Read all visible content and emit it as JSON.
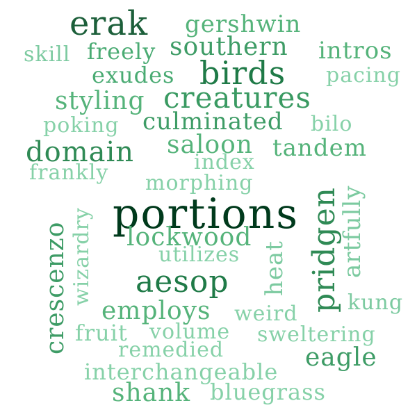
{
  "words": [
    {
      "key": "erak",
      "text": "erak",
      "color": "#1c5f3a"
    },
    {
      "key": "gershwin",
      "text": "gershwin",
      "color": "#55b37a"
    },
    {
      "key": "skill",
      "text": "skill",
      "color": "#7ccaa0"
    },
    {
      "key": "freely",
      "text": "freely",
      "color": "#4aab73"
    },
    {
      "key": "southern",
      "text": "southern",
      "color": "#3e9c66"
    },
    {
      "key": "intros",
      "text": "intros",
      "color": "#55b37a"
    },
    {
      "key": "exudes",
      "text": "exudes",
      "color": "#4aab73"
    },
    {
      "key": "birds",
      "text": "birds",
      "color": "#1f7a47"
    },
    {
      "key": "pacing",
      "text": "pacing",
      "color": "#86d1a8"
    },
    {
      "key": "styling",
      "text": "styling",
      "color": "#55b37a"
    },
    {
      "key": "creatures",
      "text": "creatures",
      "color": "#3a9a62"
    },
    {
      "key": "poking",
      "text": "poking",
      "color": "#86d1a8"
    },
    {
      "key": "culminated",
      "text": "culminated",
      "color": "#3e9c66"
    },
    {
      "key": "bilo",
      "text": "bilo",
      "color": "#86d1a8"
    },
    {
      "key": "domain",
      "text": "domain",
      "color": "#2f8a55"
    },
    {
      "key": "saloon",
      "text": "saloon",
      "color": "#55b37a"
    },
    {
      "key": "tandem",
      "text": "tandem",
      "color": "#55b37a"
    },
    {
      "key": "index",
      "text": "index",
      "color": "#86d1a8"
    },
    {
      "key": "frankly",
      "text": "frankly",
      "color": "#86d1a8"
    },
    {
      "key": "morphing",
      "text": "morphing",
      "color": "#86d1a8"
    },
    {
      "key": "portions",
      "text": "portions",
      "color": "#003a1c"
    },
    {
      "key": "lockwood",
      "text": "lockwood",
      "color": "#55b37a"
    },
    {
      "key": "utilizes",
      "text": "utilizes",
      "color": "#86d1a8"
    },
    {
      "key": "aesop",
      "text": "aesop",
      "color": "#1f7a47"
    },
    {
      "key": "employs",
      "text": "employs",
      "color": "#55b37a"
    },
    {
      "key": "weird",
      "text": "weird",
      "color": "#86d1a8"
    },
    {
      "key": "kung",
      "text": "kung",
      "color": "#7ccaa0"
    },
    {
      "key": "fruit",
      "text": "fruit",
      "color": "#86d1a8"
    },
    {
      "key": "volume",
      "text": "volume",
      "color": "#86d1a8"
    },
    {
      "key": "sweltering",
      "text": "sweltering",
      "color": "#86d1a8"
    },
    {
      "key": "remedied",
      "text": "remedied",
      "color": "#86d1a8"
    },
    {
      "key": "eagle",
      "text": "eagle",
      "color": "#3e9c66"
    },
    {
      "key": "interchangeable",
      "text": "interchangeable",
      "color": "#86d1a8"
    },
    {
      "key": "shank",
      "text": "shank",
      "color": "#55b37a"
    },
    {
      "key": "bluegrass",
      "text": "bluegrass",
      "color": "#86d1a8"
    },
    {
      "key": "crescenzo",
      "text": "crescenzo",
      "color": "#3e9c66"
    },
    {
      "key": "wizardry",
      "text": "wizardry",
      "color": "#86d1a8"
    },
    {
      "key": "heat",
      "text": "heat",
      "color": "#7ccaa0"
    },
    {
      "key": "pridgen",
      "text": "pridgen",
      "color": "#2f8a55"
    },
    {
      "key": "artfully",
      "text": "artfully",
      "color": "#7ccaa0"
    }
  ]
}
